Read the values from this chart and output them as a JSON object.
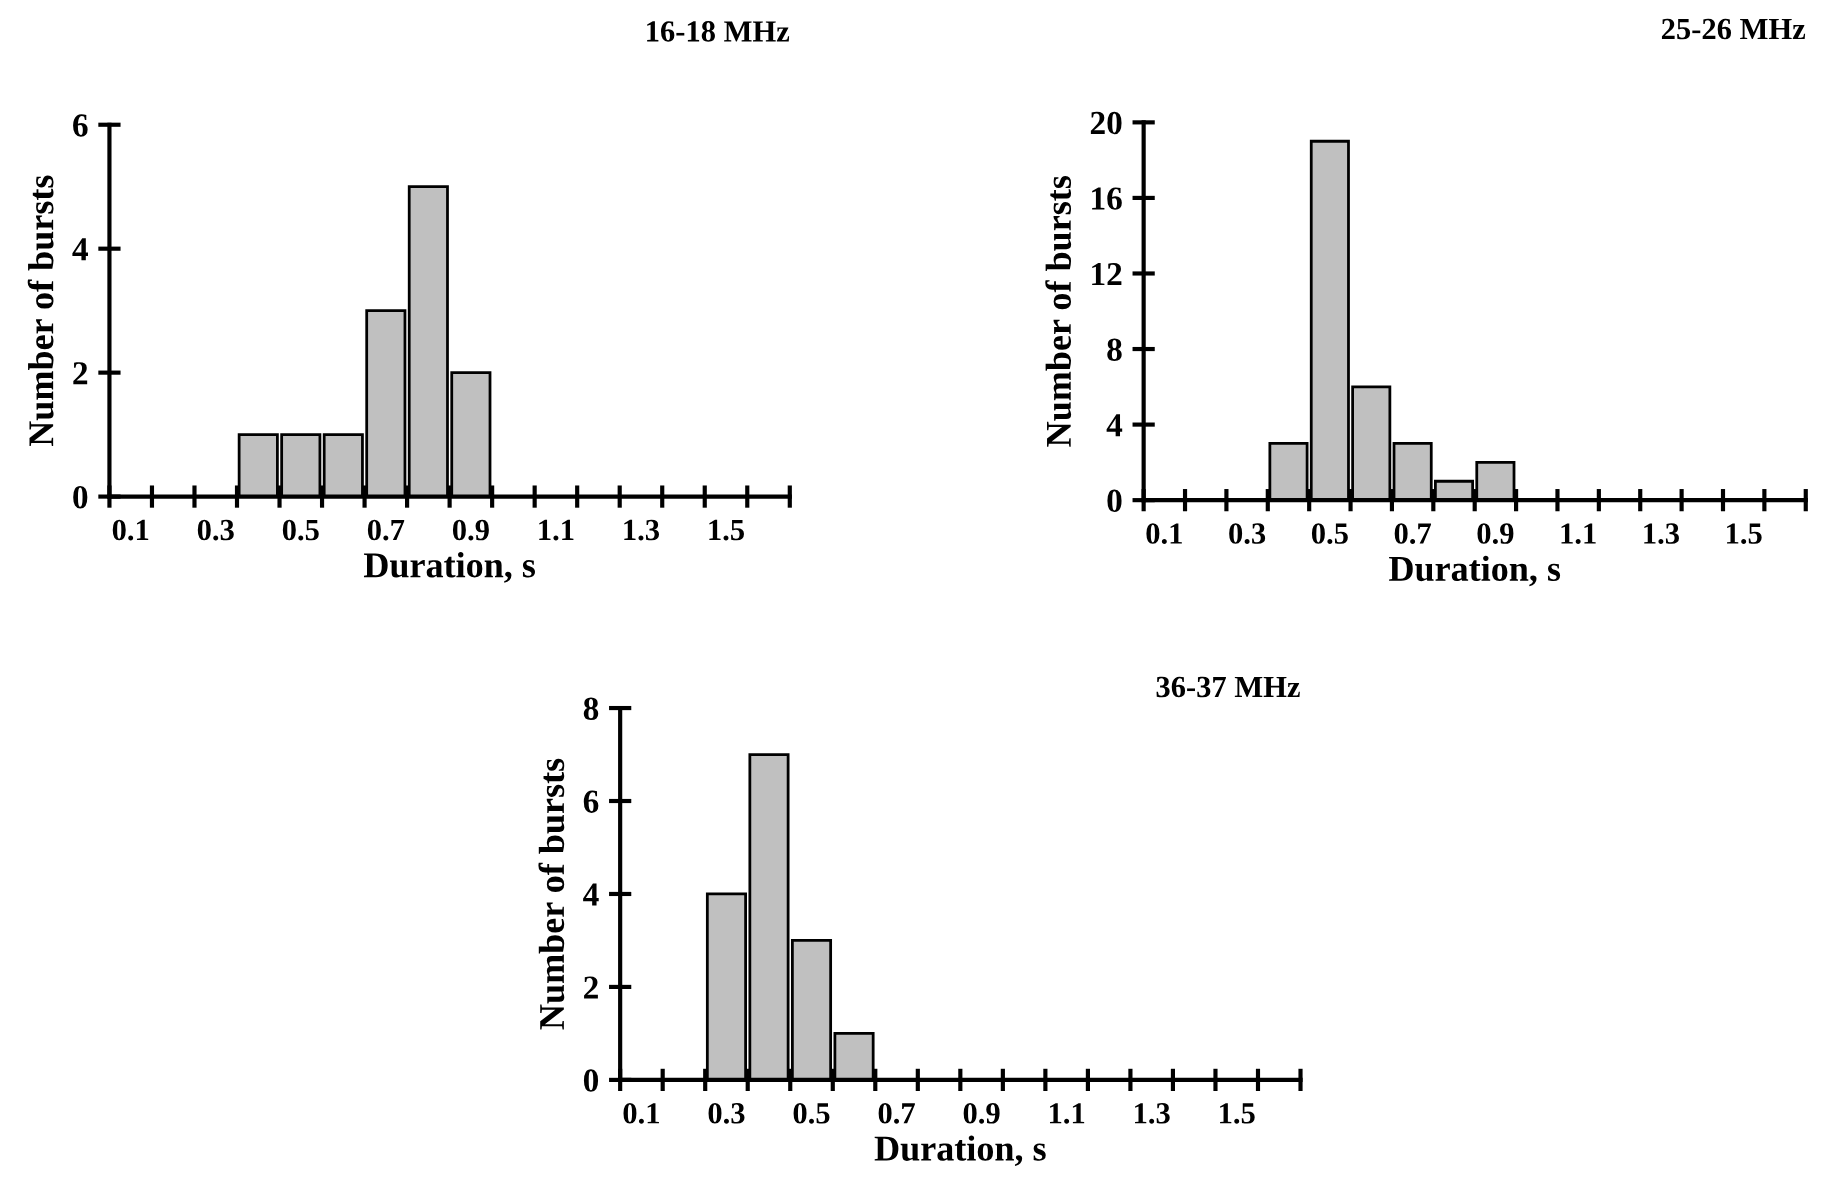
{
  "chart_data": [
    {
      "type": "bar",
      "title": "16-18 MHz",
      "xlabel": "Duration, s",
      "ylabel": "Number of bursts",
      "categories": [
        "0.1",
        null,
        "0.3",
        null,
        "0.5",
        null,
        "0.7",
        null,
        "0.9",
        null,
        "1.1",
        null,
        "1.3",
        null,
        "1.5",
        null
      ],
      "values": [
        0,
        0,
        0,
        1,
        1,
        1,
        3,
        5,
        2,
        0,
        0,
        0,
        0,
        0,
        0,
        0
      ],
      "color": "#c0c0c0",
      "ylim": [
        0,
        6
      ],
      "yticks": [
        0,
        2,
        4,
        6
      ],
      "grid": false,
      "legend": false
    },
    {
      "type": "bar",
      "title": "25-26 MHz",
      "xlabel": "Duration, s",
      "ylabel": "Number of bursts",
      "categories": [
        "0.1",
        null,
        "0.3",
        null,
        "0.5",
        null,
        "0.7",
        null,
        "0.9",
        null,
        "1.1",
        null,
        "1.3",
        null,
        "1.5",
        null
      ],
      "values": [
        0,
        0,
        0,
        3,
        19,
        6,
        3,
        1,
        2,
        0,
        0,
        0,
        0,
        0,
        0,
        0
      ],
      "color": "#c0c0c0",
      "ylim": [
        0,
        20
      ],
      "yticks": [
        0,
        4,
        8,
        12,
        16,
        20
      ],
      "grid": false,
      "legend": false
    },
    {
      "type": "bar",
      "title": "36-37 MHz",
      "xlabel": "Duration, s",
      "ylabel": "Number of bursts",
      "categories": [
        "0.1",
        null,
        "0.3",
        null,
        "0.5",
        null,
        "0.7",
        null,
        "0.9",
        null,
        "1.1",
        null,
        "1.3",
        null,
        "1.5",
        null
      ],
      "values": [
        0,
        0,
        4,
        7,
        3,
        1,
        0,
        0,
        0,
        0,
        0,
        0,
        0,
        0,
        0,
        0
      ],
      "color": "#c0c0c0",
      "ylim": [
        0,
        8
      ],
      "yticks": [
        0,
        2,
        4,
        6,
        8
      ],
      "grid": false,
      "legend": false
    }
  ]
}
